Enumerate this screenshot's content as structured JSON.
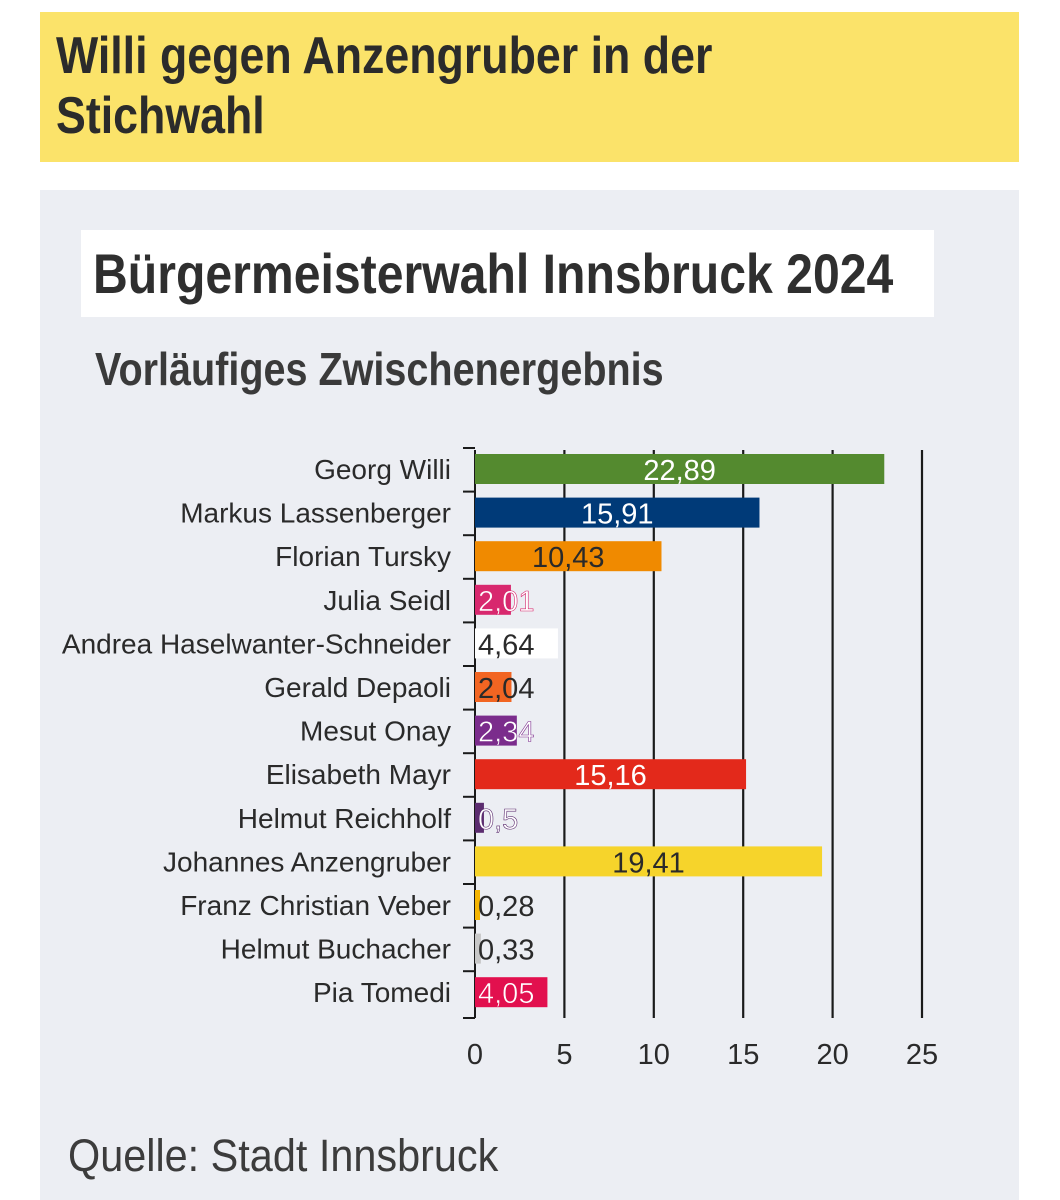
{
  "headline": "Willi gegen Anzengruber in der Stichwahl",
  "source": "Quelle: Stadt Innsbruck",
  "chart_data": {
    "type": "bar",
    "orientation": "horizontal",
    "title": "Bürgermeisterwahl Innsbruck 2024",
    "subtitle": "Vorläufiges Zwischenergebnis",
    "categories": [
      "Georg Willi",
      "Markus Lassenberger",
      "Florian Tursky",
      "Julia Seidl",
      "Andrea Haselwanter-Schneider",
      "Gerald Depaoli",
      "Mesut Onay",
      "Elisabeth Mayr",
      "Helmut Reichholf",
      "Johannes Anzengruber",
      "Franz Christian Veber",
      "Helmut Buchacher",
      "Pia Tomedi"
    ],
    "values": [
      22.89,
      15.91,
      10.43,
      2.01,
      4.64,
      2.04,
      2.34,
      15.16,
      0.5,
      19.41,
      0.28,
      0.33,
      4.05
    ],
    "value_labels": [
      "22,89",
      "15,91",
      "10,43",
      "2,01",
      "4,64",
      "2,04",
      "2,34",
      "15,16",
      "0,5",
      "19,41",
      "0,28",
      "0,33",
      "4,05"
    ],
    "colors": [
      "#548a2f",
      "#003a78",
      "#f08a00",
      "#d8286e",
      "#ffffff",
      "#f26522",
      "#7b2c8c",
      "#e3291b",
      "#5b2c6f",
      "#f6d42b",
      "#f5b400",
      "#c7c7c7",
      "#e2104e"
    ],
    "label_colors": [
      "#ffffff",
      "#ffffff",
      "#2a2a2a",
      "#ffffff",
      "#2a2a2a",
      "#2a2a2a",
      "#ffffff",
      "#ffffff",
      "#ffffff",
      "#2a2a2a",
      "#2a2a2a",
      "#2a2a2a",
      "#ffffff"
    ],
    "xlim": [
      0,
      25
    ],
    "xticks": [
      0,
      5,
      10,
      15,
      20,
      25
    ],
    "grid": true
  }
}
